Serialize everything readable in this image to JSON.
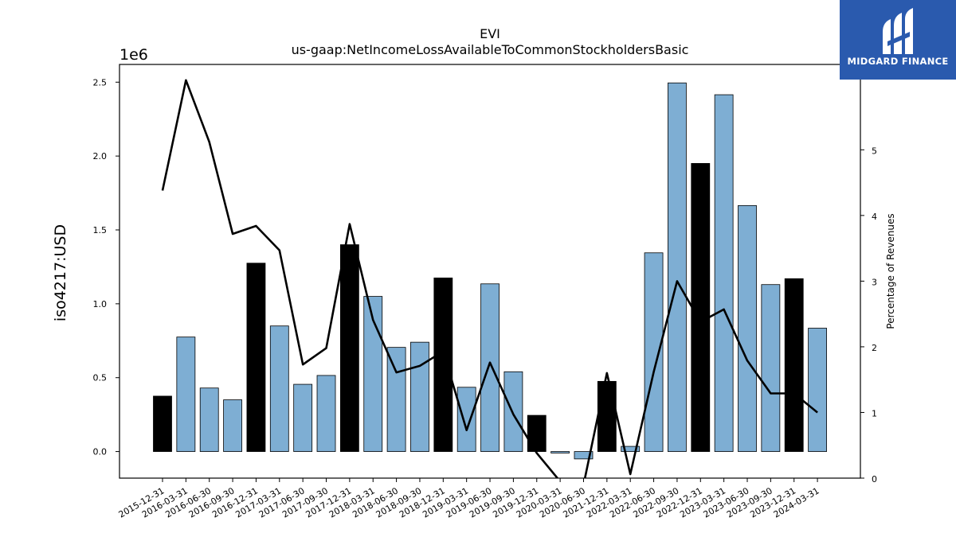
{
  "chart_data": {
    "type": "bar",
    "title": "EVI",
    "subtitle": "us-gaap:NetIncomeLossAvailableToCommonStockholdersBasic",
    "ylabel": "iso4217:USD",
    "y_offset_label": "1e6",
    "y2label": "Percentage of Revenues",
    "ylim": [
      -180000,
      2620000
    ],
    "y2lim": [
      0,
      6.3
    ],
    "yticks": [
      0.0,
      0.5,
      1.0,
      1.5,
      2.0,
      2.5
    ],
    "y2ticks": [
      0,
      1,
      2,
      3,
      4,
      5
    ],
    "grid": false,
    "categories": [
      "2015-12-31",
      "2016-03-31",
      "2016-06-30",
      "2016-09-30",
      "2016-12-31",
      "2017-03-31",
      "2017-06-30",
      "2017-09-30",
      "2017-12-31",
      "2018-03-31",
      "2018-06-30",
      "2018-09-30",
      "2018-12-31",
      "2019-03-31",
      "2019-06-30",
      "2019-09-30",
      "2019-12-31",
      "2020-03-31",
      "2020-06-30",
      "2021-12-31",
      "2022-03-31",
      "2022-06-30",
      "2022-09-30",
      "2022-12-31",
      "2023-03-31",
      "2023-06-30",
      "2023-09-30",
      "2023-12-31",
      "2024-03-31"
    ],
    "series": [
      {
        "kind": "bar",
        "values": [
          375000,
          775000,
          430000,
          350000,
          1275000,
          850000,
          455000,
          515000,
          1400000,
          1050000,
          705000,
          740000,
          1175000,
          435000,
          1135000,
          540000,
          245000,
          -10000,
          -50000,
          475000,
          35000,
          1345000,
          2495000,
          1950000,
          2415000,
          1665000,
          1130000,
          1170000,
          835000
        ],
        "highlight": [
          true,
          false,
          false,
          false,
          true,
          false,
          false,
          false,
          true,
          false,
          false,
          false,
          true,
          false,
          false,
          false,
          true,
          false,
          false,
          true,
          false,
          false,
          false,
          true,
          false,
          false,
          false,
          true,
          false
        ]
      },
      {
        "kind": "line",
        "axis": "right",
        "values": [
          4.38,
          6.06,
          5.12,
          3.72,
          3.84,
          3.47,
          1.73,
          1.98,
          3.87,
          2.41,
          1.61,
          1.71,
          1.93,
          0.73,
          1.76,
          0.97,
          0.38,
          -0.05,
          -0.1,
          1.6,
          0.06,
          1.62,
          3.0,
          2.38,
          2.57,
          1.79,
          1.29,
          1.29,
          1.0
        ]
      }
    ],
    "colors": {
      "bar": "#7eaed3",
      "bar_highlight": "#000000",
      "bar_edge": "#000000",
      "line": "#000000"
    }
  },
  "logo": {
    "text": "MIDGARD FINANCE",
    "background": "#2a5aae"
  }
}
